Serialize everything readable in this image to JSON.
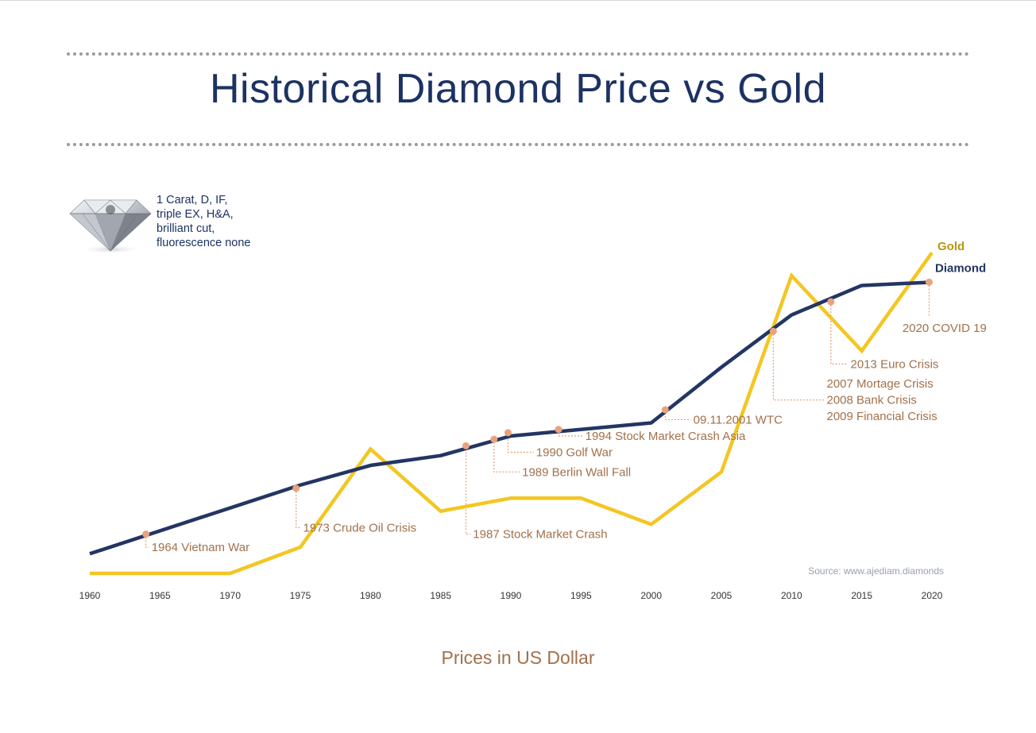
{
  "title": "Historical Diamond Price vs Gold",
  "subtitle": "Prices in US Dollar",
  "gem": {
    "caption_lines": [
      "1 Carat, D, IF,",
      "triple EX, H&A,",
      "brilliant cut,",
      "fluorescence none"
    ]
  },
  "colors": {
    "title": "#1c3263",
    "gold": "#f3c623",
    "diamond": "#233563",
    "event": "#e8a37e",
    "event_text": "#a2704a",
    "axis_text": "#333333",
    "source_text": "#9aa0ab"
  },
  "chart_data": {
    "type": "line",
    "title": "Historical Diamond Price vs Gold",
    "xlabel": "Prices in US Dollar",
    "ylabel": "",
    "xlim": [
      1960,
      2020
    ],
    "ylim": [
      0,
      100
    ],
    "x_ticks": [
      1960,
      1965,
      1970,
      1975,
      1980,
      1985,
      1990,
      1995,
      2000,
      2005,
      2010,
      2015,
      2020
    ],
    "source": "Source: www.ajediam.diamonds",
    "series": [
      {
        "name": "Gold",
        "points": [
          [
            1960,
            0
          ],
          [
            1970,
            0
          ],
          [
            1975,
            8
          ],
          [
            1980,
            38
          ],
          [
            1985,
            19
          ],
          [
            1990,
            23
          ],
          [
            1995,
            23
          ],
          [
            2000,
            15
          ],
          [
            2005,
            31
          ],
          [
            2010,
            91
          ],
          [
            2015,
            68
          ],
          [
            2020,
            98
          ]
        ]
      },
      {
        "name": "Diamond",
        "points": [
          [
            1960,
            6
          ],
          [
            1970,
            20
          ],
          [
            1975,
            27
          ],
          [
            1980,
            33
          ],
          [
            1985,
            36
          ],
          [
            1990,
            42
          ],
          [
            2000,
            46
          ],
          [
            2005,
            63
          ],
          [
            2010,
            79
          ],
          [
            2015,
            88
          ],
          [
            2020,
            89
          ]
        ]
      }
    ],
    "events": [
      {
        "label": "1964 Vietnam War",
        "x": 1964,
        "y": 12,
        "ly": 8,
        "lx": 1964.4,
        "style": "down"
      },
      {
        "label": "1973 Crude Oil Crisis",
        "x": 1974.7,
        "y": 26,
        "ly": 14,
        "lx": 1975.2,
        "style": "down"
      },
      {
        "label": "1987 Stock Market Crash",
        "x": 1986.8,
        "y": 39,
        "ly": 12,
        "lx": 1987.3,
        "style": "down"
      },
      {
        "label": "1989 Berlin Wall Fall",
        "x": 1988.8,
        "y": 41,
        "ly": 31,
        "lx": 1990.8,
        "style": "down"
      },
      {
        "label": "1990 Golf War",
        "x": 1989.8,
        "y": 43,
        "ly": 37,
        "lx": 1991.8,
        "style": "down"
      },
      {
        "label": "1994 Stock Market Crash Asia",
        "x": 1993.4,
        "y": 44,
        "ly": 42,
        "lx": 1995.3,
        "style": "down"
      },
      {
        "label": "09.11.2001 WTC",
        "x": 2001,
        "y": 50,
        "ly": 47,
        "lx": 2003,
        "style": "down"
      },
      {
        "label": "2007 Mortage Crisis",
        "x": 2008.7,
        "y": 74,
        "ly": 58,
        "lx": 2012.5,
        "style": "multi"
      },
      {
        "label": "2008 Bank Crisis",
        "x": 2008.7,
        "y": 74,
        "ly": 53,
        "lx": 2012.5,
        "style": "multi"
      },
      {
        "label": "2009 Financial Crisis",
        "x": 2008.7,
        "y": 74,
        "ly": 48,
        "lx": 2012.5,
        "style": "multi"
      },
      {
        "label": "2013 Euro Crisis",
        "x": 2012.8,
        "y": 83,
        "ly": 64,
        "lx": 2014.2,
        "style": "down"
      },
      {
        "label": "2020 COVID 19",
        "x": 2019.8,
        "y": 89,
        "ly": 75,
        "lx": 2017.9,
        "style": "below"
      }
    ]
  }
}
